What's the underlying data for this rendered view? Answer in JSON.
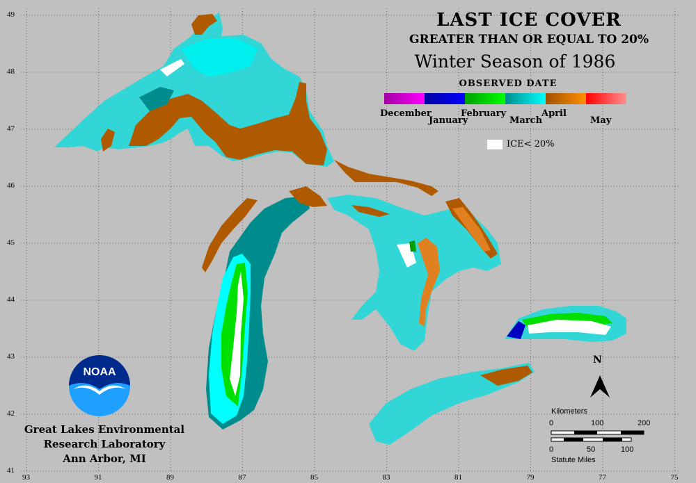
{
  "map": {
    "title": "LAST ICE COVER",
    "subtitle": "GREATER THAN OR EQUAL TO 20%",
    "season": "Winter Season of 1986",
    "legend_title": "OBSERVED DATE",
    "legend_months": [
      {
        "label": "December",
        "colors": [
          "#a000a0",
          "#ff00ff"
        ]
      },
      {
        "label": "January",
        "colors": [
          "#0000a0",
          "#0000ff"
        ]
      },
      {
        "label": "February",
        "colors": [
          "#00a000",
          "#00ff00"
        ]
      },
      {
        "label": "March",
        "colors": [
          "#008c8c",
          "#00ffff"
        ]
      },
      {
        "label": "April",
        "colors": [
          "#a05000",
          "#ff9000"
        ]
      },
      {
        "label": "May",
        "colors": [
          "#ff0000",
          "#ff9090"
        ]
      }
    ],
    "legend_ice_label": "ICE< 20%",
    "latitude_labels": [
      "49",
      "48",
      "47",
      "46",
      "45",
      "44",
      "43",
      "42",
      "41"
    ],
    "longitude_labels": [
      "93",
      "91",
      "89",
      "87",
      "85",
      "83",
      "81",
      "79",
      "77",
      "75"
    ],
    "north_label": "N",
    "scale": {
      "km_title": "Kilometers",
      "km_ticks": [
        "0",
        "100",
        "200"
      ],
      "mi_ticks": [
        "0",
        "50",
        "100"
      ],
      "mi_title": "Statute Miles"
    },
    "agency_logo_text": "NOAA",
    "credit_lines": [
      "Great Lakes Environmental",
      "Research Laboratory",
      "Ann Arbor, MI"
    ],
    "colors": {
      "background": "#c0c0c0",
      "march_dark": "#008c8c",
      "march_light": "#00ffff",
      "march_mid": "#33d6d6",
      "april_dark": "#a05000",
      "april_light": "#e08020",
      "february": "#00e000",
      "january": "#0000c0",
      "no_ice": "#ffffff"
    }
  }
}
